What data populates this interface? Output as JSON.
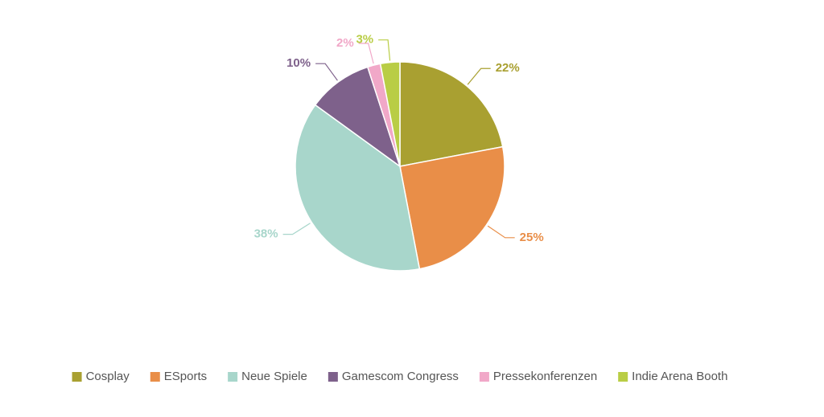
{
  "chart_data": {
    "type": "pie",
    "categories": [
      "Cosplay",
      "ESports",
      "Neue Spiele",
      "Gamescom Congress",
      "Pressekonferenzen",
      "Indie Arena Booth"
    ],
    "values": [
      22,
      25,
      38,
      10,
      2,
      3
    ],
    "value_labels": [
      "22%",
      "25%",
      "38%",
      "10%",
      "2%",
      "3%"
    ],
    "colors": [
      "#a9a031",
      "#e98e48",
      "#a8d6cb",
      "#7e618b",
      "#f1a8c8",
      "#b9cd45"
    ],
    "legend": "bottom"
  }
}
